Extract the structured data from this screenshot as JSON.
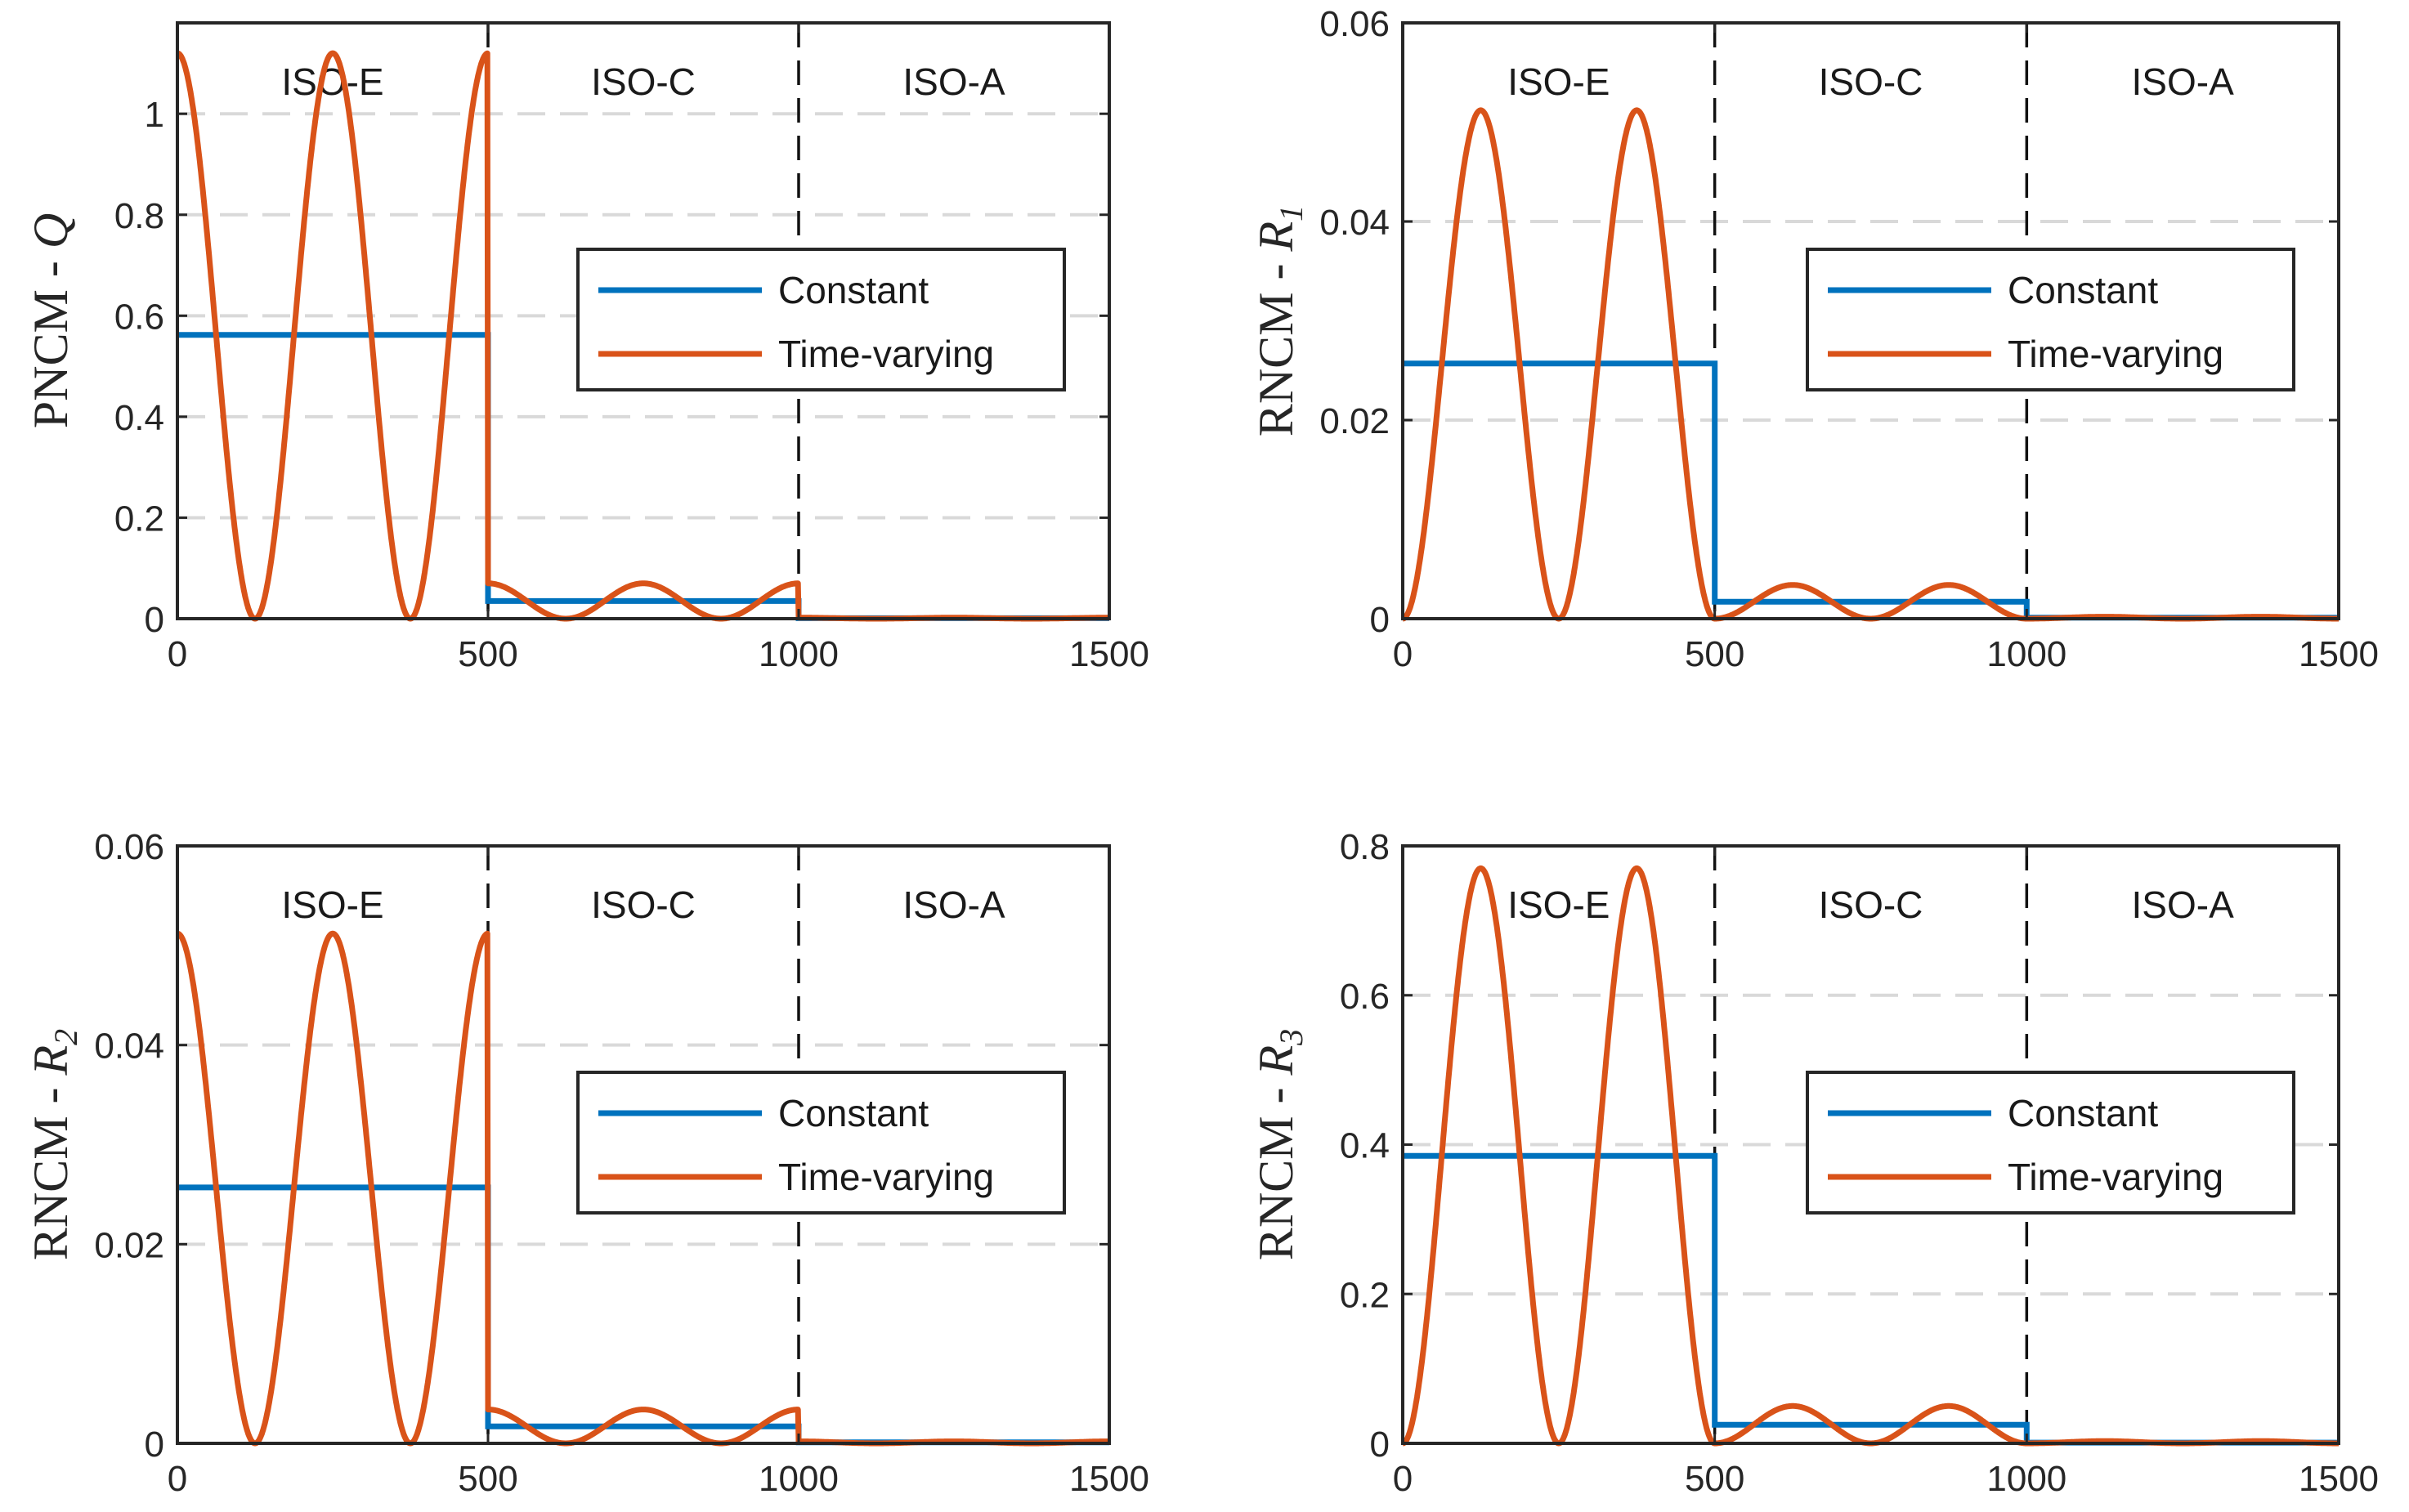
{
  "chart_data": [
    {
      "type": "line",
      "ylabel": "PNCM - ",
      "ylabel_symbol": "Q",
      "ylabel_sub": "",
      "xlim": [
        0,
        1500
      ],
      "ylim": [
        0,
        1.18
      ],
      "xticks": [
        "0",
        "500",
        "1000",
        "1500"
      ],
      "yticks": [
        {
          "v": 0,
          "label": "0"
        },
        {
          "v": 0.2,
          "label": "0.2"
        },
        {
          "v": 0.4,
          "label": "0.4"
        },
        {
          "v": 0.6,
          "label": "0.6"
        },
        {
          "v": 0.8,
          "label": "0.8"
        },
        {
          "v": 1,
          "label": "1"
        }
      ],
      "regions": [
        "ISO-E",
        "ISO-C",
        "ISO-A"
      ],
      "boundaries": [
        500,
        1000
      ],
      "legend_position": "middle-right",
      "series": [
        {
          "name": "Constant",
          "color": "#0072BD",
          "segments": [
            [
              0,
              500,
              0.562
            ],
            [
              500,
              1000,
              0.035
            ],
            [
              1000,
              1500,
              0.001
            ]
          ]
        },
        {
          "name": "Time-varying",
          "color": "#D95319",
          "peaks": [
            1.12,
            0.07,
            0.002
          ],
          "phase": "cos",
          "period": 250
        }
      ]
    },
    {
      "type": "line",
      "ylabel": "RNCM - ",
      "ylabel_symbol": "R",
      "ylabel_sub": "1",
      "xlim": [
        0,
        1500
      ],
      "ylim": [
        0,
        0.06
      ],
      "xticks": [
        "0",
        "500",
        "1000",
        "1500"
      ],
      "yticks": [
        {
          "v": 0,
          "label": "0"
        },
        {
          "v": 0.02,
          "label": "0.02"
        },
        {
          "v": 0.04,
          "label": "0.04"
        },
        {
          "v": 0.06,
          "label": "0.06"
        }
      ],
      "regions": [
        "ISO-E",
        "ISO-C",
        "ISO-A"
      ],
      "boundaries": [
        500,
        1000
      ],
      "legend_position": "top-right",
      "series": [
        {
          "name": "Constant",
          "color": "#0072BD",
          "segments": [
            [
              0,
              500,
              0.0257
            ],
            [
              500,
              1000,
              0.0017
            ],
            [
              1000,
              1500,
              0.0001
            ]
          ]
        },
        {
          "name": "Time-varying",
          "color": "#D95319",
          "peaks": [
            0.0512,
            0.0034,
            0.0002
          ],
          "phase": "sin",
          "period": 250
        }
      ]
    },
    {
      "type": "line",
      "ylabel": "RNCM - ",
      "ylabel_symbol": "R",
      "ylabel_sub": "2",
      "xlim": [
        0,
        1500
      ],
      "ylim": [
        0,
        0.06
      ],
      "xticks": [
        "0",
        "500",
        "1000",
        "1500"
      ],
      "yticks": [
        {
          "v": 0,
          "label": "0"
        },
        {
          "v": 0.02,
          "label": "0.02"
        },
        {
          "v": 0.04,
          "label": "0.04"
        },
        {
          "v": 0.06,
          "label": "0.06"
        }
      ],
      "regions": [
        "ISO-E",
        "ISO-C",
        "ISO-A"
      ],
      "boundaries": [
        500,
        1000
      ],
      "legend_position": "middle-right",
      "series": [
        {
          "name": "Constant",
          "color": "#0072BD",
          "segments": [
            [
              0,
              500,
              0.0257
            ],
            [
              500,
              1000,
              0.0017
            ],
            [
              1000,
              1500,
              0.0001
            ]
          ]
        },
        {
          "name": "Time-varying",
          "color": "#D95319",
          "peaks": [
            0.0512,
            0.0034,
            0.0002
          ],
          "phase": "cos",
          "period": 250
        }
      ]
    },
    {
      "type": "line",
      "ylabel": "RNCM - ",
      "ylabel_symbol": "R",
      "ylabel_sub": "3",
      "xlim": [
        0,
        1500
      ],
      "ylim": [
        0,
        0.8
      ],
      "xticks": [
        "0",
        "500",
        "1000",
        "1500"
      ],
      "yticks": [
        {
          "v": 0,
          "label": "0"
        },
        {
          "v": 0.2,
          "label": "0.2"
        },
        {
          "v": 0.4,
          "label": "0.4"
        },
        {
          "v": 0.6,
          "label": "0.6"
        },
        {
          "v": 0.8,
          "label": "0.8"
        }
      ],
      "regions": [
        "ISO-E",
        "ISO-C",
        "ISO-A"
      ],
      "boundaries": [
        500,
        1000
      ],
      "legend_position": "middle-right",
      "series": [
        {
          "name": "Constant",
          "color": "#0072BD",
          "segments": [
            [
              0,
              500,
              0.385
            ],
            [
              500,
              1000,
              0.025
            ],
            [
              1000,
              1500,
              0.001
            ]
          ]
        },
        {
          "name": "Time-varying",
          "color": "#D95319",
          "peaks": [
            0.77,
            0.05,
            0.003
          ],
          "phase": "sin",
          "period": 250
        }
      ]
    }
  ]
}
